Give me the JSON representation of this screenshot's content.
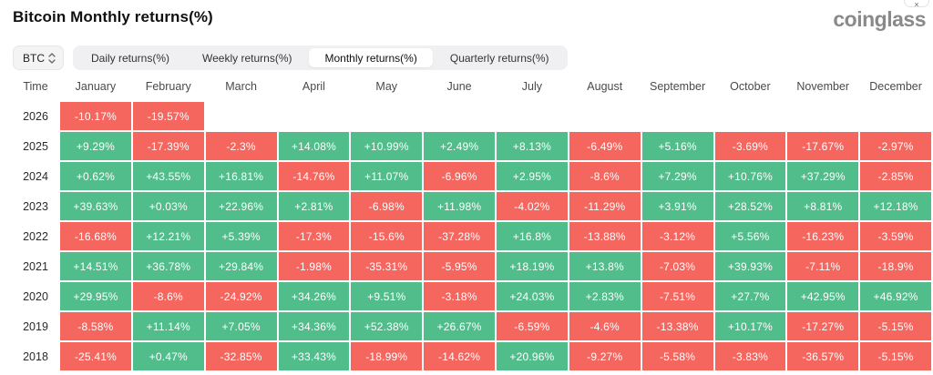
{
  "page": {
    "title": "Bitcoin Monthly returns(%)",
    "brand": "coinglass",
    "close_label": "×"
  },
  "controls": {
    "coin_selector": {
      "label": "BTC",
      "icon": "up-down-arrows-icon"
    },
    "tabs": [
      {
        "id": "daily",
        "label": "Daily returns(%)",
        "active": false
      },
      {
        "id": "weekly",
        "label": "Weekly returns(%)",
        "active": false
      },
      {
        "id": "monthly",
        "label": "Monthly returns(%)",
        "active": true
      },
      {
        "id": "quarterly",
        "label": "Quarterly returns(%)",
        "active": false
      }
    ]
  },
  "colors": {
    "positive": "#51bd8b",
    "negative": "#f5665f",
    "tab_group_bg": "#f0f0f2",
    "active_tab_bg": "#ffffff"
  },
  "chart_data": {
    "type": "heatmap",
    "title": "Bitcoin Monthly returns(%)",
    "legend_note": "green = positive monthly return, red = negative monthly return",
    "columns": [
      "Time",
      "January",
      "February",
      "March",
      "April",
      "May",
      "June",
      "July",
      "August",
      "September",
      "October",
      "November",
      "December"
    ],
    "rows": [
      {
        "year": "2026",
        "values": [
          "-10.17%",
          "-19.57%",
          null,
          null,
          null,
          null,
          null,
          null,
          null,
          null,
          null,
          null
        ]
      },
      {
        "year": "2025",
        "values": [
          "+9.29%",
          "-17.39%",
          "-2.3%",
          "+14.08%",
          "+10.99%",
          "+2.49%",
          "+8.13%",
          "-6.49%",
          "+5.16%",
          "-3.69%",
          "-17.67%",
          "-2.97%"
        ]
      },
      {
        "year": "2024",
        "values": [
          "+0.62%",
          "+43.55%",
          "+16.81%",
          "-14.76%",
          "+11.07%",
          "-6.96%",
          "+2.95%",
          "-8.6%",
          "+7.29%",
          "+10.76%",
          "+37.29%",
          "-2.85%"
        ]
      },
      {
        "year": "2023",
        "values": [
          "+39.63%",
          "+0.03%",
          "+22.96%",
          "+2.81%",
          "-6.98%",
          "+11.98%",
          "-4.02%",
          "-11.29%",
          "+3.91%",
          "+28.52%",
          "+8.81%",
          "+12.18%"
        ]
      },
      {
        "year": "2022",
        "values": [
          "-16.68%",
          "+12.21%",
          "+5.39%",
          "-17.3%",
          "-15.6%",
          "-37.28%",
          "+16.8%",
          "-13.88%",
          "-3.12%",
          "+5.56%",
          "-16.23%",
          "-3.59%"
        ]
      },
      {
        "year": "2021",
        "values": [
          "+14.51%",
          "+36.78%",
          "+29.84%",
          "-1.98%",
          "-35.31%",
          "-5.95%",
          "+18.19%",
          "+13.8%",
          "-7.03%",
          "+39.93%",
          "-7.11%",
          "-18.9%"
        ]
      },
      {
        "year": "2020",
        "values": [
          "+29.95%",
          "-8.6%",
          "-24.92%",
          "+34.26%",
          "+9.51%",
          "-3.18%",
          "+24.03%",
          "+2.83%",
          "-7.51%",
          "+27.7%",
          "+42.95%",
          "+46.92%"
        ]
      },
      {
        "year": "2019",
        "values": [
          "-8.58%",
          "+11.14%",
          "+7.05%",
          "+34.36%",
          "+52.38%",
          "+26.67%",
          "-6.59%",
          "-4.6%",
          "-13.38%",
          "+10.17%",
          "-17.27%",
          "-5.15%"
        ]
      },
      {
        "year": "2018",
        "values": [
          "-25.41%",
          "+0.47%",
          "-32.85%",
          "+33.43%",
          "-18.99%",
          "-14.62%",
          "+20.96%",
          "-9.27%",
          "-5.58%",
          "-3.83%",
          "-36.57%",
          "-5.15%"
        ]
      }
    ]
  }
}
